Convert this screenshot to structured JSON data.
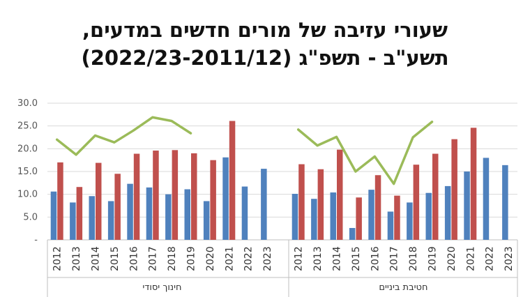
{
  "chart_data": {
    "type": "bar",
    "title_lines": [
      "שעורי עזיבה של מורים חדשים במדעים,",
      "תשע\"ב - תשפ\"ג (2022/23-2011/12)"
    ],
    "y_ticks": [
      "30.0",
      "25.0",
      "20.0",
      "15.0",
      "10.0",
      "5.0",
      "-"
    ],
    "ylim": [
      0,
      30
    ],
    "grid": true,
    "colors": {
      "blue": "#4F81BD",
      "red": "#C0504D",
      "green": "#9BBB59"
    },
    "groups": [
      {
        "name": "חינוך יסודי",
        "categories": [
          "2012",
          "2013",
          "2014",
          "2015",
          "2016",
          "2017",
          "2018",
          "2019",
          "2020",
          "2021",
          "2022",
          "2023"
        ],
        "blue": [
          10.6,
          8.2,
          9.6,
          8.5,
          12.3,
          11.5,
          10.0,
          11.1,
          8.5,
          18.1,
          11.7,
          15.6
        ],
        "red": [
          17.0,
          11.6,
          16.9,
          14.5,
          18.9,
          19.6,
          19.7,
          19.0,
          17.5,
          26.1,
          null,
          null
        ],
        "line": [
          22.0,
          18.7,
          22.9,
          21.4,
          24.0,
          26.9,
          26.1,
          23.4,
          null,
          null,
          null,
          null
        ]
      },
      {
        "name": "חטיבת ביניים",
        "categories": [
          "2012",
          "2013",
          "2014",
          "2015",
          "2016",
          "2017",
          "2018",
          "2019",
          "2020",
          "2021",
          "2022",
          "2023"
        ],
        "blue": [
          10.1,
          9.0,
          10.4,
          2.6,
          11.0,
          6.2,
          8.2,
          10.3,
          11.8,
          15.0,
          18.0,
          16.4
        ],
        "red": [
          16.6,
          15.5,
          19.8,
          9.3,
          14.2,
          9.7,
          16.5,
          18.9,
          22.1,
          24.6,
          null,
          null
        ],
        "line": [
          24.2,
          20.7,
          22.6,
          15.0,
          18.3,
          12.3,
          22.5,
          25.9,
          null,
          null,
          null,
          null
        ]
      }
    ]
  }
}
